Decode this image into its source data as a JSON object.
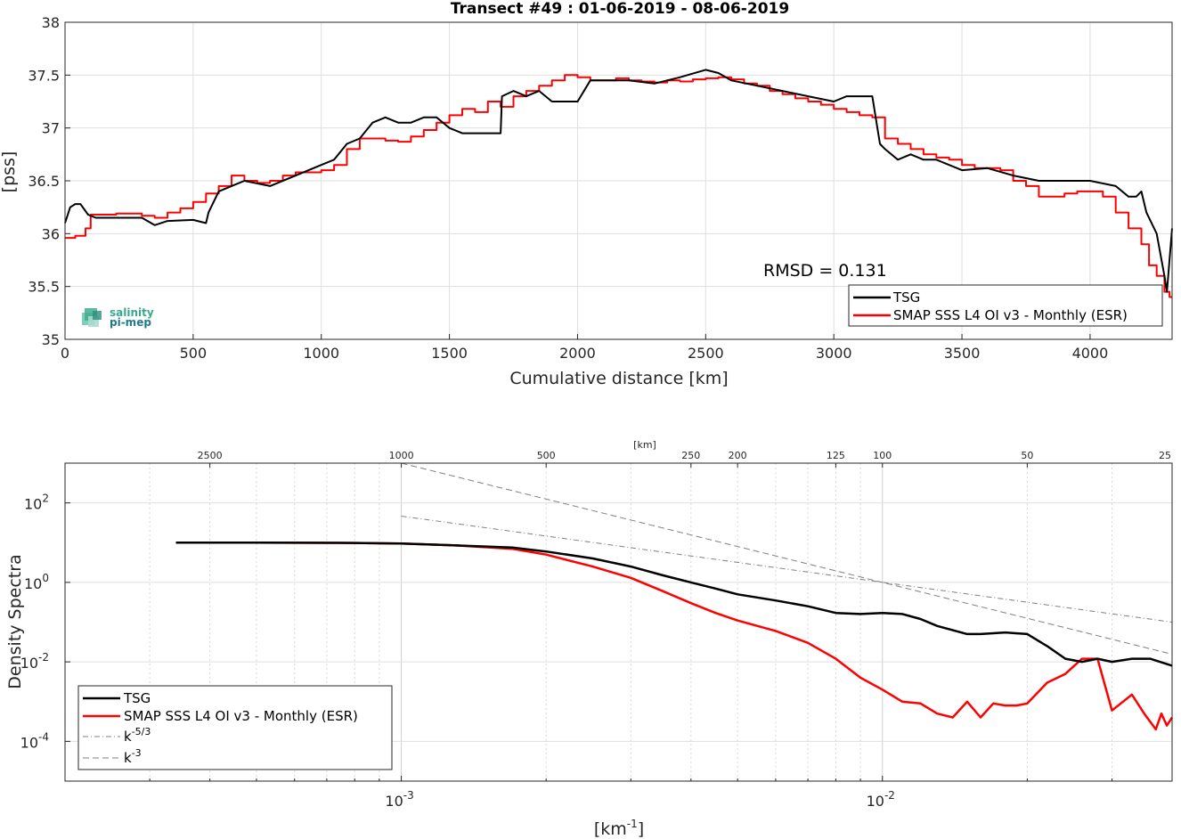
{
  "logo": {
    "line1": "salinity",
    "line2": "pi-mep"
  },
  "chart_data": [
    {
      "type": "line",
      "title": "Transect #49 : 01-06-2019 - 08-06-2019",
      "xlabel": "Cumulative distance [km]",
      "ylabel": "[pss]",
      "xlim": [
        0,
        4320
      ],
      "ylim": [
        35,
        38
      ],
      "xticks": [
        0,
        500,
        1000,
        1500,
        2000,
        2500,
        3000,
        3500,
        4000
      ],
      "xtick_labels": [
        "0",
        "500",
        "1000",
        "1500",
        "2000",
        "2500",
        "3000",
        "3500",
        "4000"
      ],
      "yticks": [
        35,
        35.5,
        36,
        36.5,
        37,
        37.5,
        38
      ],
      "ytick_labels": [
        "35",
        "35.5",
        "36",
        "36.5",
        "37",
        "37.5",
        "38"
      ],
      "grid": true,
      "legend_position": "bottom-right",
      "annotation": "RMSD = 0.131",
      "series": [
        {
          "name": "TSG",
          "color": "#000000",
          "x": [
            0,
            20,
            40,
            60,
            90,
            120,
            200,
            300,
            350,
            400,
            500,
            550,
            560,
            600,
            650,
            700,
            800,
            900,
            1000,
            1050,
            1100,
            1150,
            1200,
            1250,
            1300,
            1350,
            1400,
            1450,
            1500,
            1550,
            1600,
            1650,
            1700,
            1705,
            1750,
            1800,
            1850,
            1900,
            1950,
            2000,
            2050,
            2100,
            2200,
            2300,
            2400,
            2500,
            2550,
            2600,
            2700,
            2800,
            2900,
            3000,
            3050,
            3100,
            3150,
            3170,
            3180,
            3200,
            3250,
            3300,
            3350,
            3400,
            3500,
            3600,
            3700,
            3800,
            3900,
            4000,
            4100,
            4150,
            4180,
            4200,
            4220,
            4260,
            4290,
            4300,
            4320
          ],
          "y": [
            36.1,
            36.25,
            36.28,
            36.28,
            36.18,
            36.15,
            36.15,
            36.15,
            36.08,
            36.12,
            36.13,
            36.1,
            36.2,
            36.4,
            36.45,
            36.5,
            36.45,
            36.55,
            36.65,
            36.7,
            36.85,
            36.9,
            37.05,
            37.1,
            37.05,
            37.05,
            37.1,
            37.1,
            37.0,
            36.95,
            36.95,
            36.95,
            36.95,
            37.3,
            37.35,
            37.3,
            37.35,
            37.25,
            37.25,
            37.25,
            37.45,
            37.45,
            37.45,
            37.42,
            37.48,
            37.55,
            37.52,
            37.45,
            37.4,
            37.35,
            37.3,
            37.25,
            37.3,
            37.3,
            37.3,
            37.0,
            36.85,
            36.8,
            36.7,
            36.75,
            36.7,
            36.7,
            36.6,
            36.62,
            36.55,
            36.5,
            36.5,
            36.5,
            36.45,
            36.35,
            36.35,
            36.4,
            36.2,
            36.0,
            35.6,
            35.45,
            36.05
          ]
        },
        {
          "name": "SMAP SSS L4 OI v3 - Monthly (ESR)",
          "color": "#ff0000",
          "x": [
            0,
            40,
            80,
            100,
            150,
            200,
            250,
            300,
            350,
            400,
            450,
            500,
            550,
            600,
            650,
            700,
            750,
            800,
            850,
            900,
            950,
            1000,
            1050,
            1100,
            1150,
            1200,
            1250,
            1300,
            1350,
            1400,
            1450,
            1500,
            1550,
            1600,
            1650,
            1700,
            1750,
            1800,
            1850,
            1900,
            1950,
            2000,
            2050,
            2100,
            2150,
            2200,
            2250,
            2300,
            2350,
            2400,
            2450,
            2500,
            2550,
            2600,
            2650,
            2700,
            2750,
            2800,
            2850,
            2900,
            2950,
            3000,
            3050,
            3100,
            3150,
            3200,
            3250,
            3300,
            3350,
            3400,
            3450,
            3500,
            3550,
            3600,
            3650,
            3700,
            3750,
            3800,
            3850,
            3900,
            3950,
            4000,
            4050,
            4100,
            4150,
            4200,
            4230,
            4260,
            4290,
            4310,
            4320
          ],
          "y": [
            35.96,
            35.98,
            36.05,
            36.18,
            36.18,
            36.19,
            36.19,
            36.17,
            36.15,
            36.2,
            36.24,
            36.3,
            36.38,
            36.45,
            36.55,
            36.5,
            36.48,
            36.5,
            36.55,
            36.58,
            36.58,
            36.6,
            36.65,
            36.8,
            36.9,
            36.9,
            36.88,
            36.87,
            36.92,
            36.98,
            37.05,
            37.12,
            37.18,
            37.15,
            37.25,
            37.2,
            37.3,
            37.35,
            37.4,
            37.45,
            37.5,
            37.48,
            37.45,
            37.45,
            37.47,
            37.45,
            37.44,
            37.43,
            37.45,
            37.44,
            37.46,
            37.47,
            37.48,
            37.46,
            37.42,
            37.4,
            37.35,
            37.32,
            37.28,
            37.25,
            37.22,
            37.18,
            37.15,
            37.12,
            37.1,
            36.9,
            36.85,
            36.8,
            36.75,
            36.72,
            36.7,
            36.65,
            36.62,
            36.62,
            36.6,
            36.5,
            36.45,
            36.35,
            36.35,
            36.38,
            36.4,
            36.4,
            36.35,
            36.2,
            36.05,
            35.9,
            35.7,
            35.6,
            35.45,
            35.4,
            35.4
          ]
        }
      ]
    },
    {
      "type": "line",
      "xlabel": "[km-1]",
      "ylabel": "Density Spectra",
      "x_scale": "log",
      "y_scale": "log",
      "xlim": [
        0.0002,
        0.04
      ],
      "ylim": [
        1e-05,
        1000
      ],
      "xticks": [
        0.001,
        0.01
      ],
      "xtick_labels": [
        {
          "base": "10",
          "exp": "-3"
        },
        {
          "base": "10",
          "exp": "-2"
        }
      ],
      "yticks": [
        0.0001,
        0.01,
        1,
        100
      ],
      "ytick_labels": [
        {
          "base": "10",
          "exp": "-4"
        },
        {
          "base": "10",
          "exp": "-2"
        },
        {
          "base": "10",
          "exp": "0"
        },
        {
          "base": "10",
          "exp": "2"
        }
      ],
      "top_axis_label": "[km]",
      "top_ticks_km": [
        2500,
        1000,
        500,
        250,
        200,
        125,
        100,
        50,
        25
      ],
      "top_tick_labels": [
        "2500",
        "1000",
        "500",
        "250",
        "200",
        "125",
        "100",
        "50",
        "25"
      ],
      "grid": true,
      "legend_position": "bottom-left",
      "series": [
        {
          "name": "TSG",
          "color": "#000000",
          "style": "solid",
          "x": [
            0.00034,
            0.0005,
            0.0008,
            0.001,
            0.0013,
            0.0017,
            0.002,
            0.0025,
            0.003,
            0.0035,
            0.004,
            0.0045,
            0.005,
            0.006,
            0.007,
            0.008,
            0.009,
            0.01,
            0.011,
            0.012,
            0.013,
            0.015,
            0.016,
            0.018,
            0.02,
            0.022,
            0.024,
            0.026,
            0.028,
            0.03,
            0.033,
            0.036,
            0.04
          ],
          "y": [
            10,
            10,
            9.8,
            9.5,
            8.5,
            7.5,
            6,
            4,
            2.5,
            1.5,
            1,
            0.7,
            0.5,
            0.35,
            0.25,
            0.17,
            0.16,
            0.17,
            0.16,
            0.12,
            0.08,
            0.05,
            0.05,
            0.055,
            0.05,
            0.025,
            0.012,
            0.01,
            0.012,
            0.01,
            0.012,
            0.012,
            0.008
          ]
        },
        {
          "name": "SMAP SSS L4 OI v3 - Monthly (ESR)",
          "color": "#ff0000",
          "style": "solid",
          "x": [
            0.00034,
            0.0005,
            0.0008,
            0.001,
            0.0013,
            0.0017,
            0.002,
            0.0025,
            0.003,
            0.0035,
            0.004,
            0.0045,
            0.005,
            0.006,
            0.007,
            0.008,
            0.009,
            0.01,
            0.011,
            0.012,
            0.013,
            0.014,
            0.015,
            0.016,
            0.017,
            0.018,
            0.019,
            0.02,
            0.022,
            0.024,
            0.026,
            0.028,
            0.03,
            0.033,
            0.035,
            0.037,
            0.038,
            0.039,
            0.04
          ],
          "y": [
            10,
            10,
            9.8,
            9.5,
            8.5,
            7,
            5,
            2.5,
            1.3,
            0.6,
            0.3,
            0.17,
            0.11,
            0.06,
            0.03,
            0.012,
            0.004,
            0.002,
            0.001,
            0.0009,
            0.0005,
            0.0004,
            0.001,
            0.0004,
            0.0009,
            0.0008,
            0.0008,
            0.0009,
            0.003,
            0.005,
            0.012,
            0.012,
            0.0006,
            0.0015,
            0.0005,
            0.0002,
            0.0005,
            0.00025,
            0.0004
          ]
        },
        {
          "name": "k-5/3",
          "color": "#808080",
          "style": "dashdot",
          "x": [
            0.001,
            0.04
          ],
          "y": [
            46.4,
            0.1
          ]
        },
        {
          "name": "k-3",
          "color": "#808080",
          "style": "dashed",
          "x": [
            0.001,
            0.04
          ],
          "y": [
            1000,
            0.0156
          ]
        }
      ]
    }
  ]
}
